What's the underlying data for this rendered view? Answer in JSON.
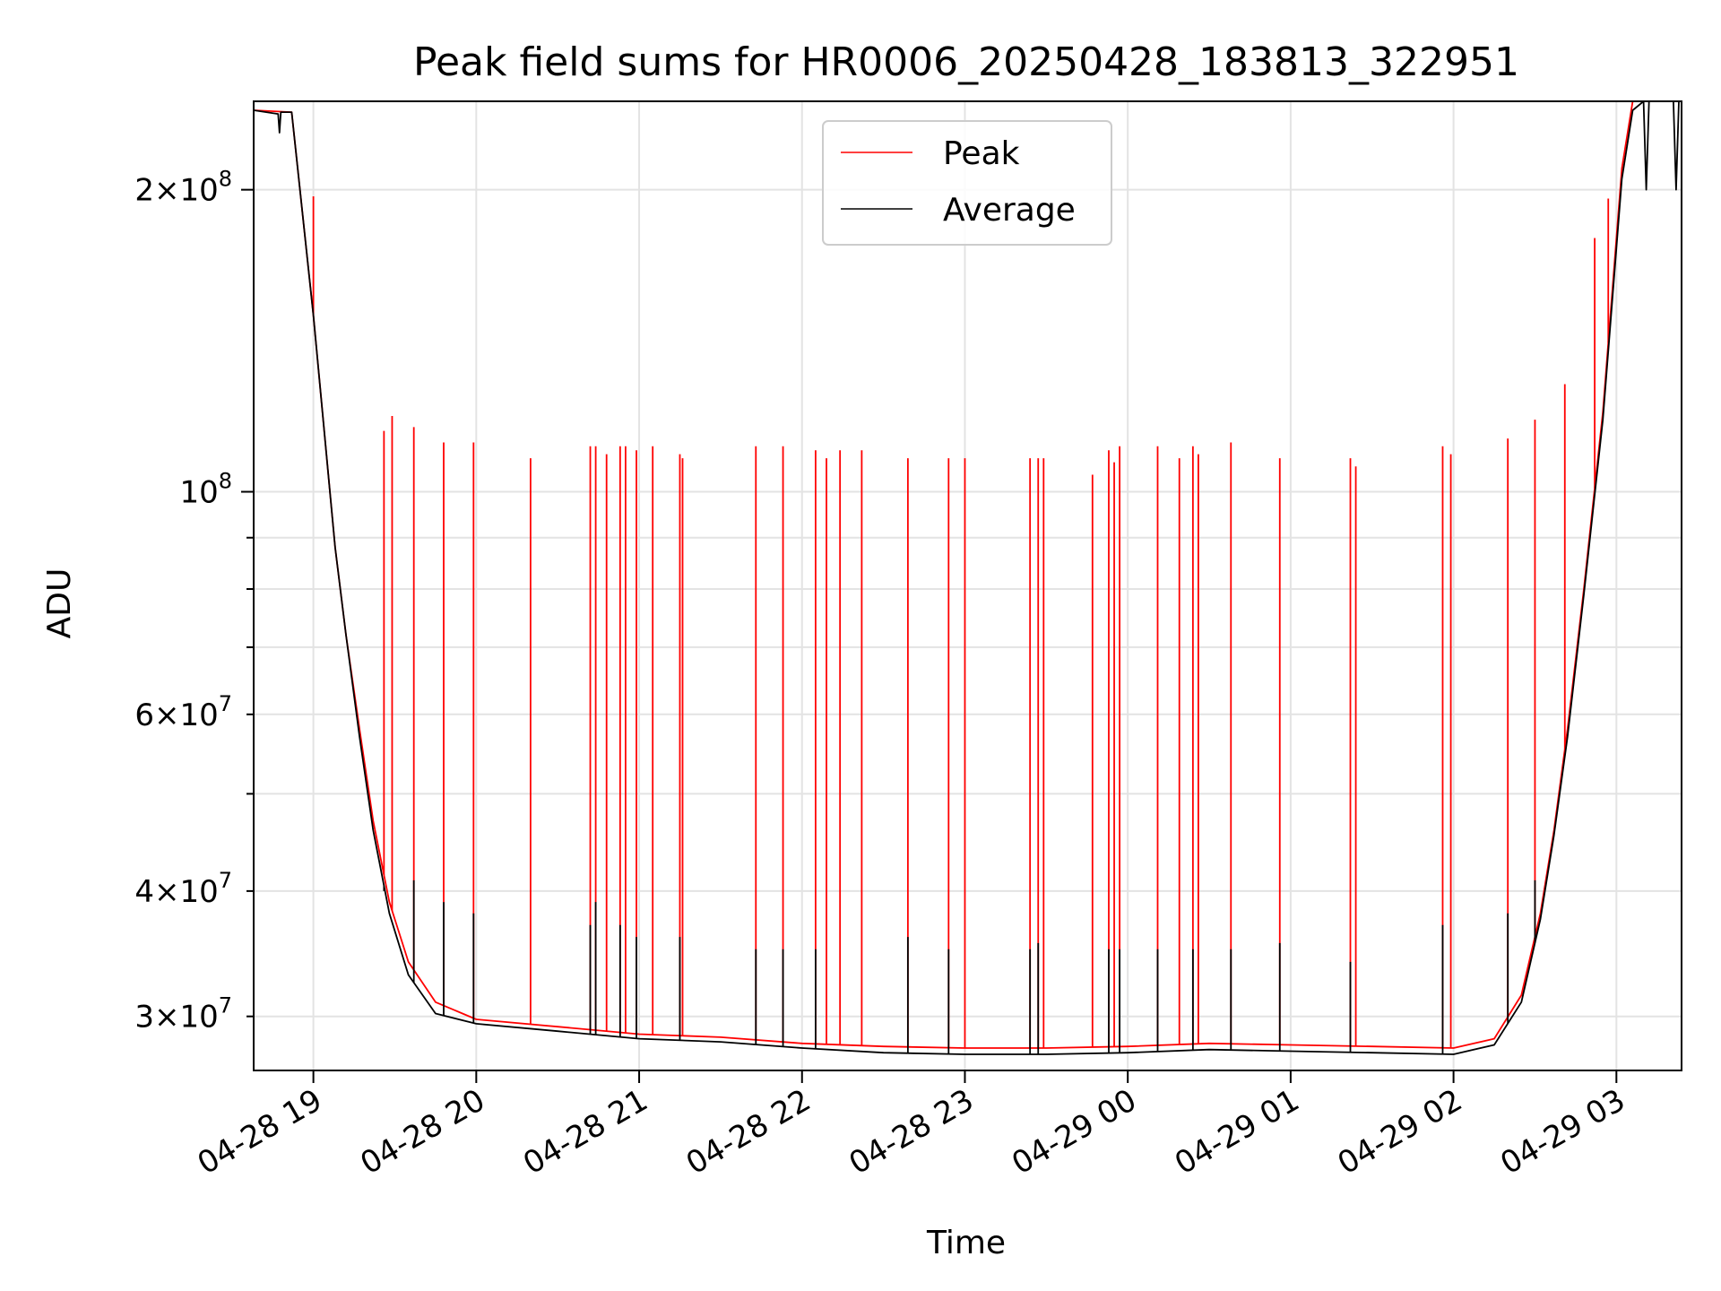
{
  "chart_data": {
    "type": "line",
    "title": "Peak field sums for HR0006_20250428_183813_322951",
    "xlabel": "Time",
    "ylabel": "ADU",
    "yscale": "log",
    "xlim": [
      "2025-04-28 18:38:00",
      "2025-04-29 03:24:00"
    ],
    "ylim": [
      26500000,
      245000000
    ],
    "x_ticks": [
      {
        "label": "04-28 19",
        "value": "2025-04-28 19:00:00"
      },
      {
        "label": "04-28 20",
        "value": "2025-04-28 20:00:00"
      },
      {
        "label": "04-28 21",
        "value": "2025-04-28 21:00:00"
      },
      {
        "label": "04-28 22",
        "value": "2025-04-28 22:00:00"
      },
      {
        "label": "04-28 23",
        "value": "2025-04-28 23:00:00"
      },
      {
        "label": "04-29 00",
        "value": "2025-04-29 00:00:00"
      },
      {
        "label": "04-29 01",
        "value": "2025-04-29 01:00:00"
      },
      {
        "label": "04-29 02",
        "value": "2025-04-29 02:00:00"
      },
      {
        "label": "04-29 03",
        "value": "2025-04-29 03:00:00"
      }
    ],
    "y_major_ticks": [
      {
        "mantissa": "",
        "exponent": "8",
        "value": 100000000
      },
      {
        "mantissa": "2",
        "exponent": "8",
        "value": 200000000
      }
    ],
    "y_minor_ticks": [
      {
        "mantissa": "3",
        "exponent": "7",
        "value": 30000000
      },
      {
        "mantissa": "4",
        "exponent": "7",
        "value": 40000000
      },
      {
        "mantissa": "6",
        "exponent": "7",
        "value": 60000000
      }
    ],
    "y_unlabeled_minor": [
      50000000,
      70000000,
      80000000,
      90000000
    ],
    "grid": true,
    "legend": {
      "placement": "upper-center",
      "entries": [
        "Peak",
        "Average"
      ]
    },
    "series": [
      {
        "name": "Peak",
        "color": "#ff0000",
        "baseline": [
          [
            "2025-04-28 18:38:00",
            240000000
          ],
          [
            "2025-04-28 18:52:00",
            239000000
          ],
          [
            "2025-04-28 19:00:00",
            150000000
          ],
          [
            "2025-04-28 19:08:00",
            88000000
          ],
          [
            "2025-04-28 19:12:00",
            72000000
          ],
          [
            "2025-04-28 19:17:00",
            58000000
          ],
          [
            "2025-04-28 19:22:00",
            47000000
          ],
          [
            "2025-04-28 19:28:00",
            39000000
          ],
          [
            "2025-04-28 19:35:00",
            34000000
          ],
          [
            "2025-04-28 19:45:00",
            31000000
          ],
          [
            "2025-04-28 20:00:00",
            29800000
          ],
          [
            "2025-04-28 20:30:00",
            29300000
          ],
          [
            "2025-04-28 21:00:00",
            28800000
          ],
          [
            "2025-04-28 21:30:00",
            28600000
          ],
          [
            "2025-04-28 22:00:00",
            28200000
          ],
          [
            "2025-04-28 22:30:00",
            28000000
          ],
          [
            "2025-04-28 23:00:00",
            27900000
          ],
          [
            "2025-04-28 23:30:00",
            27900000
          ],
          [
            "2025-04-29 00:00:00",
            28000000
          ],
          [
            "2025-04-29 00:30:00",
            28200000
          ],
          [
            "2025-04-29 01:00:00",
            28100000
          ],
          [
            "2025-04-29 01:30:00",
            28000000
          ],
          [
            "2025-04-29 02:00:00",
            27900000
          ],
          [
            "2025-04-29 02:15:00",
            28500000
          ],
          [
            "2025-04-29 02:25:00",
            31500000
          ],
          [
            "2025-04-29 02:32:00",
            38000000
          ],
          [
            "2025-04-29 02:37:00",
            46000000
          ],
          [
            "2025-04-29 02:42:00",
            58000000
          ],
          [
            "2025-04-29 02:48:00",
            80000000
          ],
          [
            "2025-04-29 02:55:00",
            120000000
          ],
          [
            "2025-04-29 03:02:00",
            210000000
          ],
          [
            "2025-04-29 03:06:00",
            245000000
          ],
          [
            "2025-04-29 03:24:00",
            245000000
          ]
        ],
        "spikes": [
          [
            "2025-04-28 19:00:00",
            197000000
          ],
          [
            "2025-04-28 19:26:00",
            115000000
          ],
          [
            "2025-04-28 19:29:00",
            119000000
          ],
          [
            "2025-04-28 19:37:00",
            116000000
          ],
          [
            "2025-04-28 19:48:00",
            112000000
          ],
          [
            "2025-04-28 19:59:00",
            112000000
          ],
          [
            "2025-04-28 20:20:00",
            108000000
          ],
          [
            "2025-04-28 20:42:00",
            111000000
          ],
          [
            "2025-04-28 20:44:00",
            111000000
          ],
          [
            "2025-04-28 20:48:00",
            109000000
          ],
          [
            "2025-04-28 20:53:00",
            111000000
          ],
          [
            "2025-04-28 20:55:00",
            111000000
          ],
          [
            "2025-04-28 20:59:00",
            110000000
          ],
          [
            "2025-04-28 21:05:00",
            111000000
          ],
          [
            "2025-04-28 21:15:00",
            109000000
          ],
          [
            "2025-04-28 21:16:00",
            108000000
          ],
          [
            "2025-04-28 21:43:00",
            111000000
          ],
          [
            "2025-04-28 21:53:00",
            111000000
          ],
          [
            "2025-04-28 22:05:00",
            110000000
          ],
          [
            "2025-04-28 22:09:00",
            108000000
          ],
          [
            "2025-04-28 22:14:00",
            110000000
          ],
          [
            "2025-04-28 22:22:00",
            110000000
          ],
          [
            "2025-04-28 22:39:00",
            108000000
          ],
          [
            "2025-04-28 22:54:00",
            108000000
          ],
          [
            "2025-04-28 23:00:00",
            108000000
          ],
          [
            "2025-04-28 23:24:00",
            108000000
          ],
          [
            "2025-04-28 23:27:00",
            108000000
          ],
          [
            "2025-04-28 23:29:00",
            108000000
          ],
          [
            "2025-04-28 23:47:00",
            104000000
          ],
          [
            "2025-04-28 23:53:00",
            110000000
          ],
          [
            "2025-04-28 23:55:00",
            107000000
          ],
          [
            "2025-04-28 23:57:00",
            111000000
          ],
          [
            "2025-04-29 00:11:00",
            111000000
          ],
          [
            "2025-04-29 00:19:00",
            108000000
          ],
          [
            "2025-04-29 00:24:00",
            111000000
          ],
          [
            "2025-04-29 00:26:00",
            109000000
          ],
          [
            "2025-04-29 00:38:00",
            112000000
          ],
          [
            "2025-04-29 00:56:00",
            108000000
          ],
          [
            "2025-04-29 01:22:00",
            108000000
          ],
          [
            "2025-04-29 01:24:00",
            106000000
          ],
          [
            "2025-04-29 01:56:00",
            111000000
          ],
          [
            "2025-04-29 01:59:00",
            109000000
          ],
          [
            "2025-04-29 02:20:00",
            113000000
          ],
          [
            "2025-04-29 02:30:00",
            118000000
          ],
          [
            "2025-04-29 02:41:00",
            128000000
          ],
          [
            "2025-04-29 02:52:00",
            179000000
          ],
          [
            "2025-04-29 02:57:00",
            196000000
          ]
        ]
      },
      {
        "name": "Average",
        "color": "#000000",
        "baseline": [
          [
            "2025-04-28 18:38:00",
            240000000
          ],
          [
            "2025-04-28 18:47:00",
            238000000
          ],
          [
            "2025-04-28 18:47:30",
            228000000
          ],
          [
            "2025-04-28 18:48:00",
            239000000
          ],
          [
            "2025-04-28 18:52:00",
            239000000
          ],
          [
            "2025-04-28 19:00:00",
            150000000
          ],
          [
            "2025-04-28 19:08:00",
            88000000
          ],
          [
            "2025-04-28 19:12:00",
            72000000
          ],
          [
            "2025-04-28 19:17:00",
            57000000
          ],
          [
            "2025-04-28 19:22:00",
            46000000
          ],
          [
            "2025-04-28 19:28:00",
            38000000
          ],
          [
            "2025-04-28 19:35:00",
            33000000
          ],
          [
            "2025-04-28 19:45:00",
            30200000
          ],
          [
            "2025-04-28 20:00:00",
            29500000
          ],
          [
            "2025-04-28 20:30:00",
            29000000
          ],
          [
            "2025-04-28 21:00:00",
            28500000
          ],
          [
            "2025-04-28 21:30:00",
            28300000
          ],
          [
            "2025-04-28 22:00:00",
            27900000
          ],
          [
            "2025-04-28 22:30:00",
            27600000
          ],
          [
            "2025-04-28 23:00:00",
            27500000
          ],
          [
            "2025-04-28 23:30:00",
            27500000
          ],
          [
            "2025-04-29 00:00:00",
            27600000
          ],
          [
            "2025-04-29 00:30:00",
            27800000
          ],
          [
            "2025-04-29 01:00:00",
            27700000
          ],
          [
            "2025-04-29 01:30:00",
            27600000
          ],
          [
            "2025-04-29 02:00:00",
            27500000
          ],
          [
            "2025-04-29 02:15:00",
            28100000
          ],
          [
            "2025-04-29 02:25:00",
            31000000
          ],
          [
            "2025-04-29 02:32:00",
            37500000
          ],
          [
            "2025-04-29 02:37:00",
            45500000
          ],
          [
            "2025-04-29 02:42:00",
            57000000
          ],
          [
            "2025-04-29 02:48:00",
            79000000
          ],
          [
            "2025-04-29 02:55:00",
            118000000
          ],
          [
            "2025-04-29 03:02:00",
            205000000
          ],
          [
            "2025-04-29 03:06:00",
            240000000
          ],
          [
            "2025-04-29 03:10:00",
            245000000
          ],
          [
            "2025-04-29 03:11:00",
            200000000
          ],
          [
            "2025-04-29 03:12:00",
            245000000
          ],
          [
            "2025-04-29 03:21:00",
            245000000
          ],
          [
            "2025-04-29 03:22:00",
            200000000
          ],
          [
            "2025-04-29 03:23:00",
            245000000
          ],
          [
            "2025-04-29 03:24:00",
            245000000
          ]
        ],
        "spikes": [
          [
            "2025-04-28 19:26:00",
            40000000
          ],
          [
            "2025-04-28 19:37:00",
            41000000
          ],
          [
            "2025-04-28 19:48:00",
            39000000
          ],
          [
            "2025-04-28 19:59:00",
            38000000
          ],
          [
            "2025-04-28 20:42:00",
            37000000
          ],
          [
            "2025-04-28 20:44:00",
            39000000
          ],
          [
            "2025-04-28 20:53:00",
            37000000
          ],
          [
            "2025-04-28 20:59:00",
            36000000
          ],
          [
            "2025-04-28 21:15:00",
            36000000
          ],
          [
            "2025-04-28 21:43:00",
            35000000
          ],
          [
            "2025-04-28 21:53:00",
            35000000
          ],
          [
            "2025-04-28 22:05:00",
            35000000
          ],
          [
            "2025-04-28 22:39:00",
            36000000
          ],
          [
            "2025-04-28 22:54:00",
            35000000
          ],
          [
            "2025-04-28 23:24:00",
            35000000
          ],
          [
            "2025-04-28 23:27:00",
            35500000
          ],
          [
            "2025-04-28 23:53:00",
            35000000
          ],
          [
            "2025-04-28 23:57:00",
            35000000
          ],
          [
            "2025-04-29 00:11:00",
            35000000
          ],
          [
            "2025-04-29 00:24:00",
            35000000
          ],
          [
            "2025-04-29 00:38:00",
            35000000
          ],
          [
            "2025-04-29 00:56:00",
            35500000
          ],
          [
            "2025-04-29 01:22:00",
            34000000
          ],
          [
            "2025-04-29 01:56:00",
            37000000
          ],
          [
            "2025-04-29 02:20:00",
            38000000
          ],
          [
            "2025-04-29 02:30:00",
            41000000
          ]
        ]
      }
    ]
  }
}
